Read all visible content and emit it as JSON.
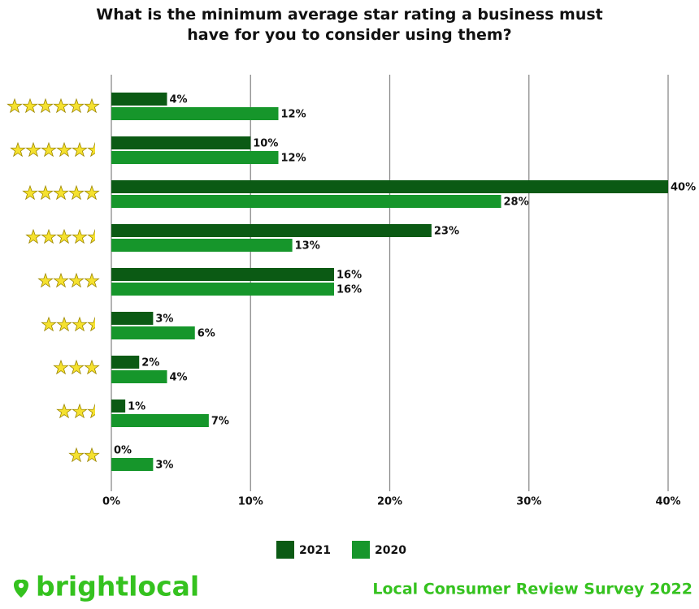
{
  "chart_data": {
    "type": "bar",
    "orientation": "horizontal",
    "title": "What is the minimum average star rating a business must have for you to consider using them?",
    "categories": [
      null,
      null,
      null,
      null,
      null,
      null,
      null,
      null,
      null
    ],
    "series": [
      {
        "name": "2021",
        "color": "#0b5a14",
        "values": [
          4,
          10,
          40,
          23,
          16,
          3,
          2,
          1,
          0
        ],
        "value_labels": [
          "4%",
          "10%",
          "40%",
          "23%",
          "16%",
          "3%",
          "2%",
          "1%",
          "0%"
        ]
      },
      {
        "name": "2020",
        "color": "#16962b",
        "values": [
          12,
          12,
          28,
          13,
          16,
          6,
          4,
          7,
          3
        ],
        "value_labels": [
          "12%",
          "12%",
          "28%",
          "13%",
          "16%",
          "6%",
          "4%",
          "7%",
          "3%"
        ]
      }
    ],
    "xlim": [
      0,
      40
    ],
    "xticks": [
      {
        "value": 0,
        "label": "0%"
      },
      {
        "value": 10,
        "label": "10%"
      },
      {
        "value": 20,
        "label": "20%"
      },
      {
        "value": 30,
        "label": "30%"
      },
      {
        "value": 40,
        "label": "40%"
      }
    ],
    "grid": true,
    "grid_color": "#8a8a8a",
    "legend": "bottom"
  },
  "footer": {
    "brand": "brightlocal",
    "survey": "Local Consumer Review Survey 2022"
  }
}
